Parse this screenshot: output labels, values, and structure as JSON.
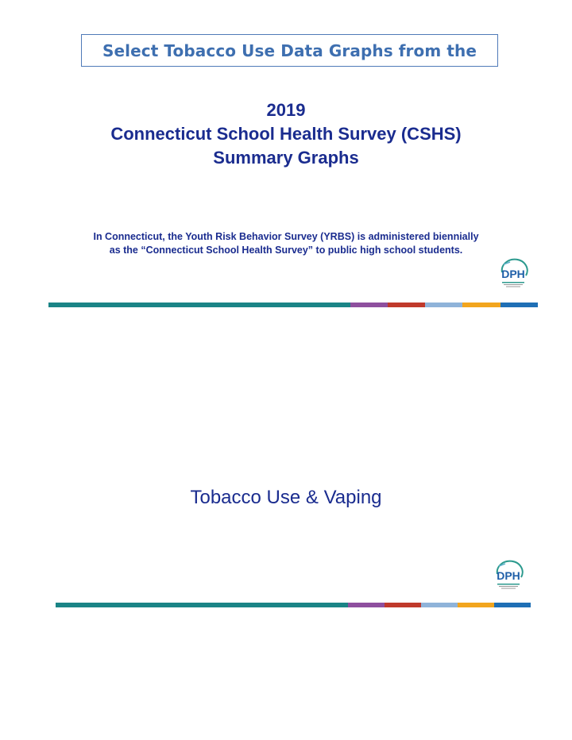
{
  "header": {
    "label": "Select Tobacco Use Data Graphs from the"
  },
  "title": {
    "line1": "2019",
    "line2": "Connecticut School Health Survey (CSHS)",
    "line3": "Summary Graphs"
  },
  "intro": {
    "line1": "In Connecticut, the Youth Risk Behavior Survey (YRBS) is administered biennially",
    "line2": "as the “Connecticut School Health Survey” to public high school students."
  },
  "logo": {
    "text": "DPH"
  },
  "section": {
    "title": "Tobacco Use & Vaping"
  },
  "colors": {
    "teal": "#1a8486",
    "purple": "#8e4f9e",
    "red": "#c0392b",
    "lightblue": "#8fb3d9",
    "orange": "#f2a51e",
    "blue": "#1f6fb5",
    "text_blue": "#1a2c8f"
  }
}
